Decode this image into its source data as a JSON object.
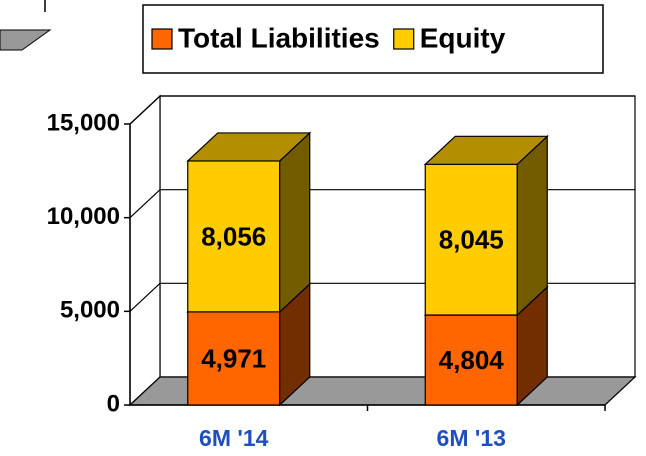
{
  "chart_data": {
    "type": "bar3d_stacked",
    "categories": [
      "6M '14",
      "6M '13"
    ],
    "series": [
      {
        "name": "Total Liabilities",
        "color": "#ff6600",
        "values": [
          4971,
          4804
        ],
        "value_labels": [
          "4,971",
          "4,804"
        ]
      },
      {
        "name": "Equity",
        "color": "#ffcc00",
        "values": [
          8056,
          8045
        ],
        "value_labels": [
          "8,056",
          "8,045"
        ]
      }
    ],
    "ylim": [
      0,
      15000
    ],
    "yticks": [
      {
        "value": 0,
        "label": "0"
      },
      {
        "value": 5000,
        "label": "5,000"
      },
      {
        "value": 10000,
        "label": "10,000"
      },
      {
        "value": 15000,
        "label": "15,000"
      }
    ],
    "grid": true,
    "legend": "top"
  }
}
